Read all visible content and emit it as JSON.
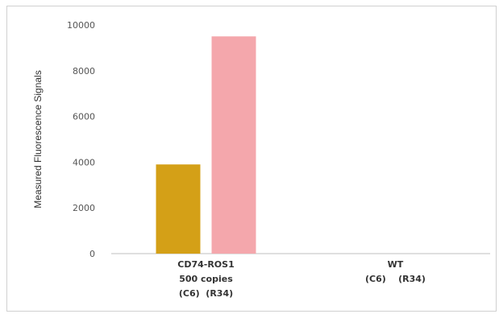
{
  "chart_data": {
    "type": "bar",
    "title": "",
    "xlabel": "",
    "ylabel": "Measured Fluorescence Signals",
    "ylim": [
      0,
      10000
    ],
    "yticks": [
      0,
      2000,
      4000,
      6000,
      8000,
      10000
    ],
    "grid": false,
    "legend": "none",
    "categories": [
      {
        "lines": [
          "CD74-ROS1",
          "500 copies",
          "(C6)  (R34)"
        ]
      },
      {
        "lines": [
          "WT",
          "(C6)    (R34)"
        ]
      }
    ],
    "series": [
      {
        "color": "#D4A017",
        "values": [
          3900,
          0
        ]
      },
      {
        "color": "#F4A7AC",
        "values": [
          9500,
          0
        ]
      }
    ]
  }
}
